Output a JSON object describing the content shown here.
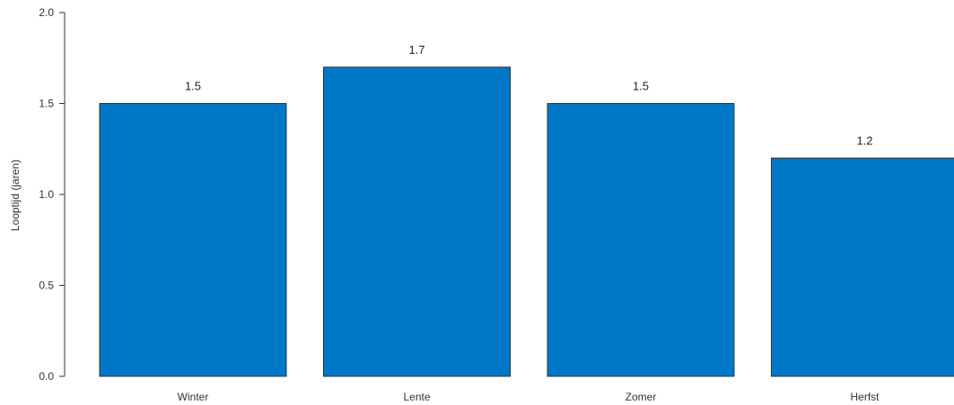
{
  "chart_data": {
    "type": "bar",
    "categories": [
      "Winter",
      "Lente",
      "Zomer",
      "Herfst"
    ],
    "values": [
      1.5,
      1.7,
      1.5,
      1.2
    ],
    "data_labels": [
      "1.5",
      "1.7",
      "1.5",
      "1.2"
    ],
    "ylabel": "Looptijd (jaren)",
    "xlabel": "",
    "ylim": [
      0,
      2.0
    ],
    "yticks": [
      "0.0",
      "0.5",
      "1.0",
      "1.5",
      "2.0"
    ],
    "grid": false,
    "colors": {
      "bar": "#0078c8",
      "bar_border": "#333333",
      "axis": "#333333"
    }
  }
}
